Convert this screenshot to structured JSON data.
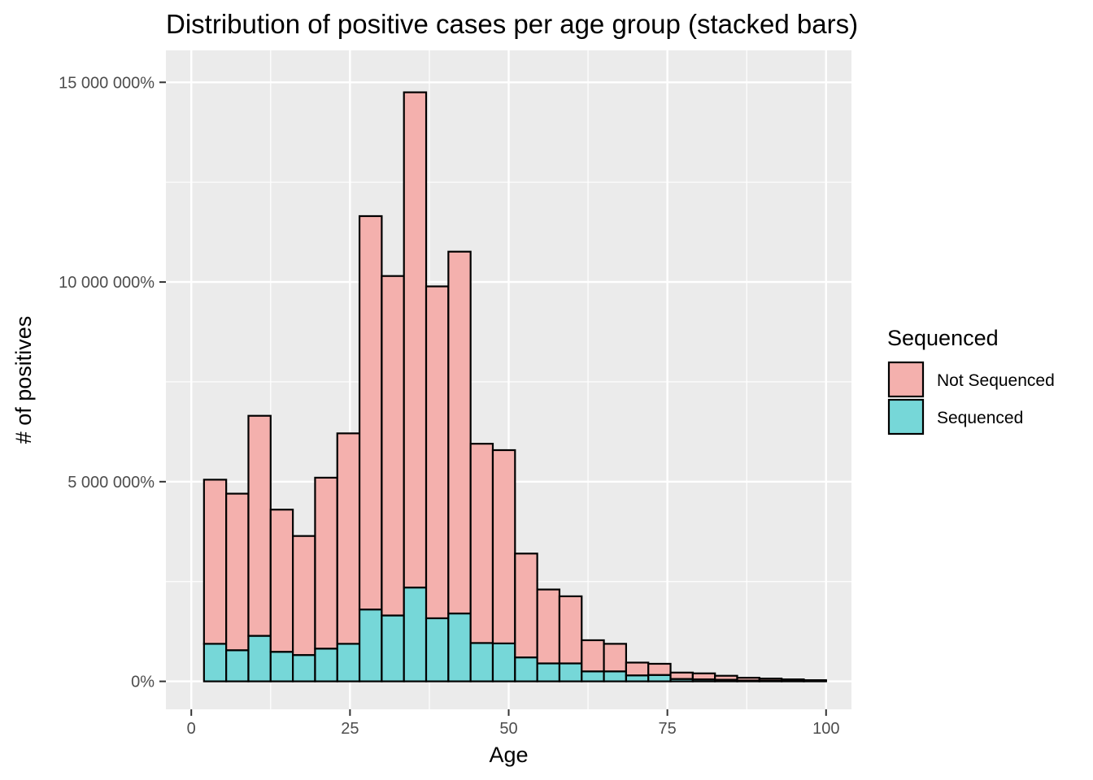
{
  "chart_data": {
    "type": "bar",
    "stacked": true,
    "title": "Distribution of positive cases per age group (stacked bars)",
    "xlabel": "Age",
    "ylabel": "# of positives",
    "xlim": [
      -4,
      104
    ],
    "ylim": [
      -700000,
      15800000
    ],
    "x_ticks": [
      0,
      25,
      50,
      75,
      100
    ],
    "x_tick_labels": [
      "0",
      "25",
      "50",
      "75",
      "100"
    ],
    "y_ticks": [
      0,
      5000000,
      10000000,
      15000000
    ],
    "y_tick_labels": [
      "0%",
      "5 000 000%",
      "10 000 000%",
      "15 000 000%"
    ],
    "bin_width": 3.5,
    "x": [
      3.75,
      7.25,
      10.75,
      14.25,
      17.75,
      21.25,
      24.75,
      28.25,
      31.75,
      35.25,
      38.75,
      42.25,
      45.75,
      49.25,
      52.75,
      56.25,
      59.75,
      63.25,
      66.75,
      70.25,
      73.75,
      77.25,
      80.75,
      84.25,
      87.75,
      91.25,
      94.75,
      98.25
    ],
    "series": [
      {
        "name": "Sequenced",
        "color": "#76d7d8",
        "values": [
          940000,
          780000,
          1140000,
          740000,
          660000,
          820000,
          940000,
          1800000,
          1650000,
          2350000,
          1580000,
          1700000,
          960000,
          950000,
          600000,
          450000,
          450000,
          250000,
          250000,
          150000,
          160000,
          60000,
          50000,
          40000,
          20000,
          20000,
          10000,
          10000
        ]
      },
      {
        "name": "Not Sequenced",
        "color": "#f4b0ad",
        "values": [
          4110000,
          3920000,
          5510000,
          3560000,
          2980000,
          4280000,
          5270000,
          9850000,
          8500000,
          12400000,
          8310000,
          9060000,
          4990000,
          4840000,
          2600000,
          1850000,
          1680000,
          780000,
          690000,
          320000,
          280000,
          160000,
          150000,
          100000,
          70000,
          50000,
          40000,
          20000
        ]
      }
    ],
    "grid": true,
    "legend": {
      "title": "Sequenced",
      "position": "right",
      "entries": [
        {
          "label": "Not Sequenced",
          "color": "#f4b0ad"
        },
        {
          "label": "Sequenced",
          "color": "#76d7d8"
        }
      ]
    },
    "panel_background": "#ebebeb",
    "bar_outline": "#000000"
  }
}
